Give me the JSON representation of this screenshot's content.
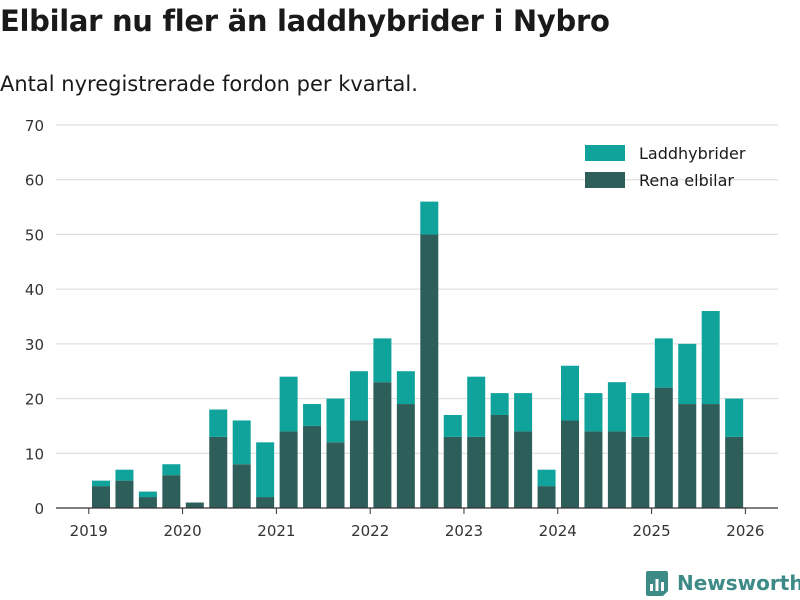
{
  "title": "Elbilar nu fler än laddhybrider i Nybro",
  "subtitle": "Antal nyregistrerade fordon per kvartal.",
  "brand": "Newsworthy",
  "chart_data": {
    "type": "bar",
    "stacked": true,
    "title": "Elbilar nu fler än laddhybrider i Nybro",
    "subtitle": "Antal nyregistrerade fordon per kvartal.",
    "xlabel": "",
    "ylabel": "",
    "ylim": [
      0,
      70
    ],
    "yticks": [
      0,
      10,
      20,
      30,
      40,
      50,
      60,
      70
    ],
    "xticks": [
      "2019",
      "2020",
      "2021",
      "2022",
      "2023",
      "2024",
      "2025",
      "2026"
    ],
    "categories": [
      "2019 Q1",
      "2019 Q2",
      "2019 Q3",
      "2019 Q4",
      "2020 Q1",
      "2020 Q2",
      "2020 Q3",
      "2020 Q4",
      "2021 Q1",
      "2021 Q2",
      "2021 Q3",
      "2021 Q4",
      "2022 Q1",
      "2022 Q2",
      "2022 Q3",
      "2022 Q4",
      "2023 Q1",
      "2023 Q2",
      "2023 Q3",
      "2023 Q4",
      "2024 Q1",
      "2024 Q2",
      "2024 Q3",
      "2024 Q4",
      "2025 Q1",
      "2025 Q2",
      "2025 Q3",
      "2025 Q4"
    ],
    "series": [
      {
        "name": "Rena elbilar",
        "color": "#2e5e5a",
        "values": [
          4,
          5,
          2,
          6,
          1,
          13,
          8,
          2,
          14,
          15,
          12,
          16,
          23,
          19,
          50,
          13,
          13,
          17,
          14,
          4,
          16,
          14,
          14,
          13,
          22,
          19,
          19,
          13
        ]
      },
      {
        "name": "Laddhybrider",
        "color": "#0fa39b",
        "values": [
          1,
          2,
          1,
          2,
          0,
          5,
          8,
          10,
          10,
          4,
          8,
          9,
          8,
          6,
          6,
          4,
          11,
          4,
          7,
          3,
          10,
          7,
          9,
          8,
          9,
          11,
          17,
          7
        ]
      }
    ],
    "legend": [
      "Laddhybrider",
      "Rena elbilar"
    ],
    "legend_position": "top-right",
    "grid": true
  }
}
